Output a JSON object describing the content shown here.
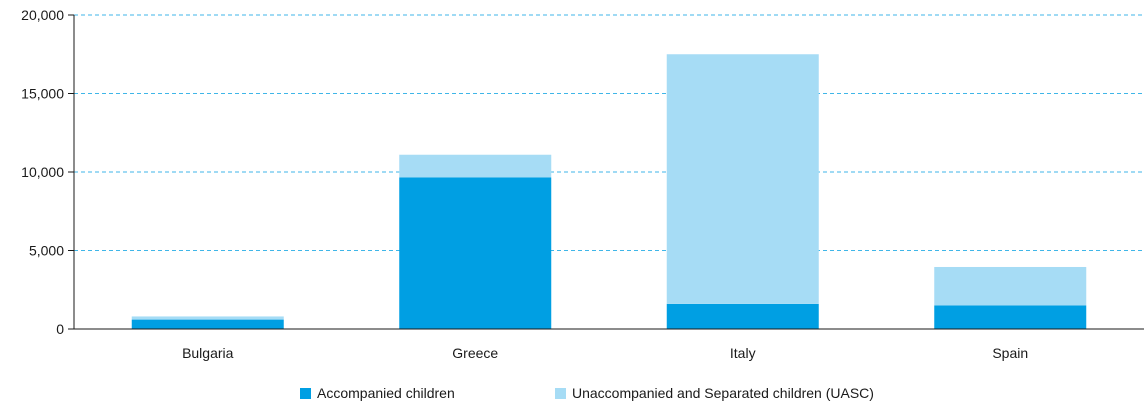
{
  "chart_data": {
    "type": "bar",
    "stacked": true,
    "categories": [
      "Bulgaria",
      "Greece",
      "Italy",
      "Spain"
    ],
    "series": [
      {
        "name": "Accompanied children",
        "color": "#009fe3",
        "values": [
          600,
          9650,
          1600,
          1500
        ]
      },
      {
        "name": "Unaccompanied and Separated children (UASC)",
        "color": "#a6dcf5",
        "values": [
          200,
          1450,
          15900,
          2450
        ]
      }
    ],
    "ylim": [
      0,
      20000
    ],
    "yticks": [
      0,
      5000,
      10000,
      15000,
      20000
    ],
    "ytick_labels": [
      "0",
      "5,000",
      "10,000",
      "15,000",
      "20,000"
    ],
    "grid": true,
    "grid_style": "dashed",
    "grid_color": "#3fb6e8",
    "legend_position": "bottom-center",
    "title": "",
    "xlabel": "",
    "ylabel": ""
  }
}
